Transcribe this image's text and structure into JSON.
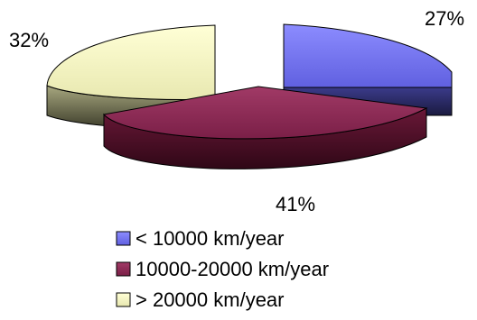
{
  "chart_data": {
    "type": "pie",
    "style": "3d-exploded",
    "title": "",
    "legend_position": "bottom",
    "slices": [
      {
        "label": "< 10000 km/year",
        "value": 27,
        "value_label": "27%",
        "color": "#8080ff"
      },
      {
        "label": "10000-20000 km/year",
        "value": 41,
        "value_label": "41%",
        "color": "#8b2a55"
      },
      {
        "label": "> 20000 km/year",
        "value": 32,
        "value_label": "32%",
        "color": "#ffffc8"
      }
    ]
  }
}
